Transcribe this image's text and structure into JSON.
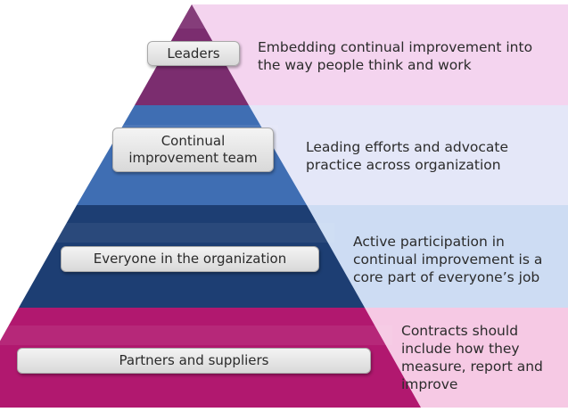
{
  "pyramid": {
    "tiers": [
      {
        "label_lines": [
          "Leaders"
        ],
        "description_lines": [
          "Embedding continual improvement into",
          "the way people think and work"
        ],
        "tier_color": "#7b2d6f",
        "band_color": "#f4d4ef"
      },
      {
        "label_lines": [
          "Continual",
          "improvement team"
        ],
        "description_lines": [
          "Leading efforts and advocate",
          "practice across organization"
        ],
        "tier_color": "#3f6eb3",
        "band_color": "#e4e7f8"
      },
      {
        "label_lines": [
          "Everyone in the organization"
        ],
        "description_lines": [
          "Active participation in",
          "continual improvement is a",
          "core part of everyone’s job"
        ],
        "tier_color": "#1d3e73",
        "band_color": "#cddcf3"
      },
      {
        "label_lines": [
          "Partners and suppliers"
        ],
        "description_lines": [
          "Contracts should",
          "include how they",
          "measure, report and",
          "improve"
        ],
        "tier_color": "#b1186f",
        "band_color": "#f6c9e4"
      }
    ]
  }
}
